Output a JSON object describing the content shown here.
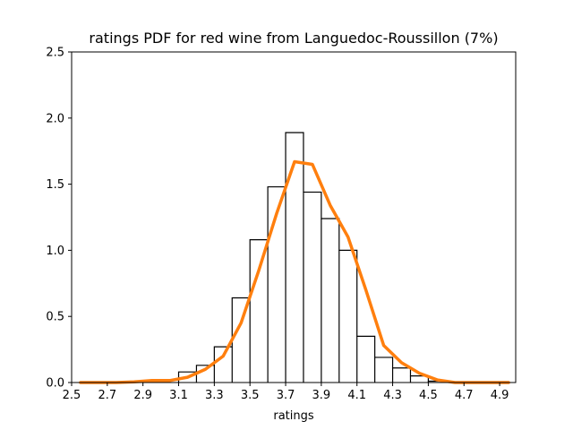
{
  "chart_data": {
    "type": "line",
    "title": "ratings PDF for red wine from Languedoc-Roussillon (7%)",
    "xlabel": "ratings",
    "ylabel": "",
    "xlim": [
      2.5,
      4.99
    ],
    "ylim": [
      0,
      2.5
    ],
    "xticks": [
      "2.5",
      "2.7",
      "2.9",
      "3.1",
      "3.3",
      "3.5",
      "3.7",
      "3.9",
      "4.1",
      "4.3",
      "4.5",
      "4.7",
      "4.9"
    ],
    "yticks": [
      "0.0",
      "0.5",
      "1.0",
      "1.5",
      "2.0",
      "2.5"
    ],
    "grid": false,
    "legend": false,
    "series": [
      {
        "type": "step-histogram",
        "color": "#000000",
        "bins": [
          {
            "x0": 3.1,
            "x1": 3.2,
            "y": 0.08
          },
          {
            "x0": 3.2,
            "x1": 3.3,
            "y": 0.13
          },
          {
            "x0": 3.3,
            "x1": 3.4,
            "y": 0.27
          },
          {
            "x0": 3.4,
            "x1": 3.5,
            "y": 0.64
          },
          {
            "x0": 3.5,
            "x1": 3.6,
            "y": 1.08
          },
          {
            "x0": 3.6,
            "x1": 3.7,
            "y": 1.48
          },
          {
            "x0": 3.7,
            "x1": 3.8,
            "y": 1.89
          },
          {
            "x0": 3.8,
            "x1": 3.9,
            "y": 1.44
          },
          {
            "x0": 3.9,
            "x1": 4.0,
            "y": 1.24
          },
          {
            "x0": 4.0,
            "x1": 4.1,
            "y": 1.0
          },
          {
            "x0": 4.1,
            "x1": 4.2,
            "y": 0.35
          },
          {
            "x0": 4.2,
            "x1": 4.3,
            "y": 0.19
          },
          {
            "x0": 4.3,
            "x1": 4.4,
            "y": 0.11
          },
          {
            "x0": 4.4,
            "x1": 4.5,
            "y": 0.05
          },
          {
            "x0": 4.5,
            "x1": 4.6,
            "y": 0.01
          }
        ]
      },
      {
        "type": "line",
        "color": "#ff7f0e",
        "x": [
          2.55,
          2.65,
          2.75,
          2.85,
          2.95,
          3.05,
          3.15,
          3.25,
          3.35,
          3.45,
          3.55,
          3.65,
          3.75,
          3.85,
          3.95,
          4.05,
          4.15,
          4.25,
          4.35,
          4.45,
          4.55,
          4.65,
          4.75,
          4.85,
          4.95
        ],
        "y": [
          0.0,
          0.0,
          0.0,
          0.005,
          0.015,
          0.015,
          0.04,
          0.1,
          0.2,
          0.45,
          0.85,
          1.28,
          1.67,
          1.65,
          1.34,
          1.1,
          0.7,
          0.28,
          0.15,
          0.07,
          0.02,
          0.0,
          0.0,
          0.0,
          0.0
        ]
      }
    ]
  }
}
